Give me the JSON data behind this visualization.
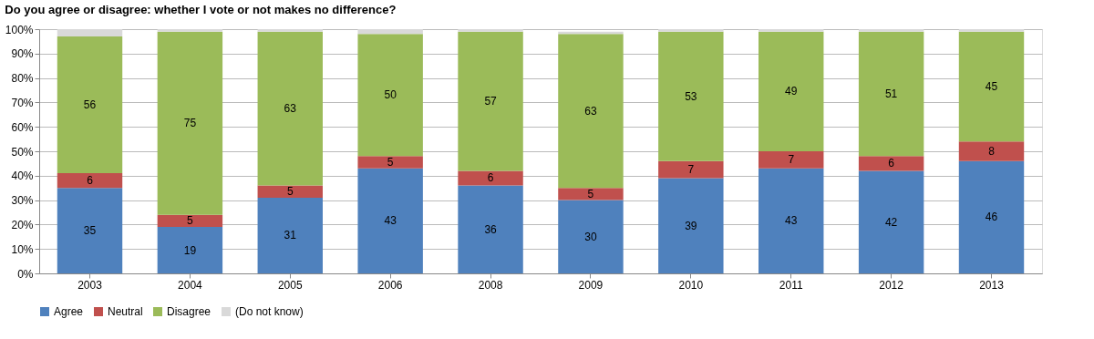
{
  "chart_data": {
    "type": "bar",
    "stacked": true,
    "title": "Do you agree or disagree: whether I vote or not makes no difference?",
    "categories": [
      "2003",
      "2004",
      "2005",
      "2006",
      "2008",
      "2009",
      "2010",
      "2011",
      "2012",
      "2013"
    ],
    "series": [
      {
        "name": "Agree",
        "color": "#4f81bd",
        "values": [
          35,
          19,
          31,
          43,
          36,
          30,
          39,
          43,
          42,
          46
        ],
        "value_labels": [
          "35",
          "19",
          "31",
          "43",
          "36",
          "30",
          "39",
          "43",
          "42",
          "46"
        ]
      },
      {
        "name": "Neutral",
        "color": "#c0504d",
        "values": [
          6,
          5,
          5,
          5,
          6,
          5,
          7,
          7,
          6,
          8
        ],
        "value_labels": [
          "6",
          "5",
          "5",
          "5",
          "6",
          "5",
          "7",
          "7",
          "6",
          "8"
        ]
      },
      {
        "name": "Disagree",
        "color": "#9bbb59",
        "values": [
          56,
          75,
          63,
          50,
          57,
          63,
          53,
          49,
          51,
          45
        ],
        "value_labels": [
          "56",
          "75",
          "63",
          "50",
          "57",
          "63",
          "53",
          "49",
          "51",
          "45"
        ]
      },
      {
        "name": "(Do not know)",
        "color": "#d9d9d9",
        "values": [
          3,
          1,
          1,
          2,
          1,
          1,
          1,
          1,
          1,
          1
        ],
        "value_labels": [
          null,
          null,
          null,
          null,
          null,
          null,
          null,
          null,
          null,
          null
        ]
      }
    ],
    "ylim": [
      0,
      100
    ],
    "yticks": [
      {
        "value": 0,
        "label": "0%"
      },
      {
        "value": 10,
        "label": "10%"
      },
      {
        "value": 20,
        "label": "20%"
      },
      {
        "value": 30,
        "label": "30%"
      },
      {
        "value": 40,
        "label": "40%"
      },
      {
        "value": 50,
        "label": "50%"
      },
      {
        "value": 60,
        "label": "60%"
      },
      {
        "value": 70,
        "label": "70%"
      },
      {
        "value": 80,
        "label": "80%"
      },
      {
        "value": 90,
        "label": "90%"
      },
      {
        "value": 100,
        "label": "100%"
      }
    ],
    "grid": "y",
    "legend": "bottom"
  }
}
